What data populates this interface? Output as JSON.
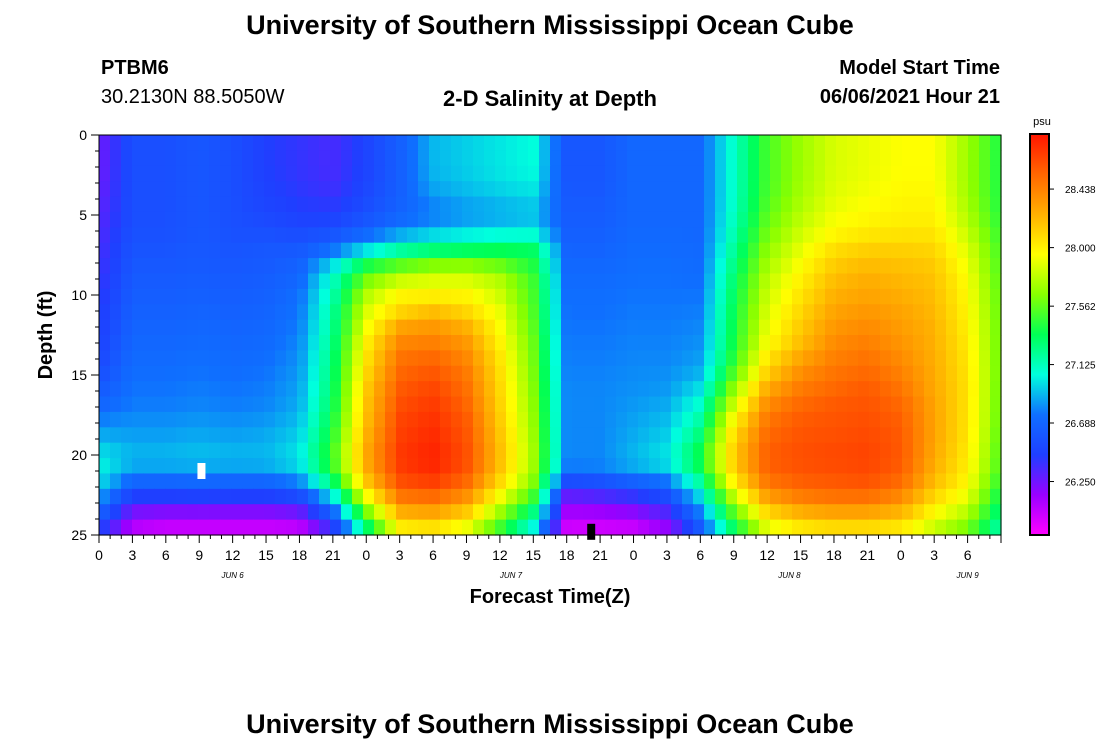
{
  "header": {
    "title": "University of Southern Mississippi Ocean Cube",
    "station": "PTBM6",
    "location": "30.2130N  88.5050W",
    "plot_title": "2-D Salinity at Depth",
    "model_start_label": "Model Start Time",
    "model_start_value": "06/06/2021 Hour 21"
  },
  "footer": {
    "title": "University of Southern Mississippi Ocean Cube"
  },
  "colors": {
    "scale": [
      "#ff00ff",
      "#9900ff",
      "#1f3fff",
      "#0f6fff",
      "#00ffdd",
      "#00ff55",
      "#88ff00",
      "#ffff00",
      "#ffb000",
      "#ff6600",
      "#ff1500"
    ]
  },
  "chart_data": {
    "type": "heatmap",
    "title": "2-D Salinity at Depth",
    "xlabel": "Forecast Time(Z)",
    "ylabel": "Depth (ft)",
    "x_range_hours": [
      0,
      81
    ],
    "ylim": [
      0,
      25
    ],
    "y_ticks": [
      "0",
      "5",
      "10",
      "15",
      "20",
      "25"
    ],
    "x_ticks": [
      "0",
      "3",
      "6",
      "9",
      "12",
      "15",
      "18",
      "21",
      "0",
      "3",
      "6",
      "9",
      "12",
      "15",
      "18",
      "21",
      "0",
      "3",
      "6",
      "9",
      "12",
      "15",
      "18",
      "21",
      "0",
      "3",
      "6"
    ],
    "date_labels": [
      {
        "label": "JUN 6",
        "hour": 12
      },
      {
        "label": "JUN 7",
        "hour": 37
      },
      {
        "label": "JUN 8",
        "hour": 62
      },
      {
        "label": "JUN 9",
        "hour": 78
      }
    ],
    "colorbar": {
      "unit": "psu",
      "labels": [
        "28.438",
        "28.000",
        "27.562",
        "27.125",
        "26.688",
        "26.250"
      ],
      "min": 25.85,
      "max": 28.85
    },
    "grid": false,
    "depth_levels_ft": [
      0,
      1,
      2,
      3,
      4,
      5,
      6,
      7,
      8,
      9,
      10,
      11,
      12,
      13,
      14,
      15,
      16,
      17,
      18,
      19,
      20,
      21,
      22,
      23,
      24,
      25
    ],
    "time_hours": [
      0,
      3,
      6,
      9,
      12,
      15,
      18,
      21,
      24,
      27,
      30,
      33,
      36,
      39,
      42,
      45,
      48,
      51,
      54,
      57,
      60,
      63,
      66,
      69,
      72,
      75,
      78,
      81
    ],
    "salinity_psu": [
      [
        26.25,
        26.55,
        26.55,
        26.6,
        26.55,
        26.45,
        26.4,
        26.35,
        26.48,
        26.65,
        26.9,
        26.95,
        27.0,
        27.05,
        26.6,
        26.6,
        26.7,
        26.7,
        26.7,
        27.1,
        27.5,
        27.7,
        27.85,
        27.9,
        27.95,
        27.95,
        27.7,
        27.4
      ],
      [
        26.25,
        26.55,
        26.55,
        26.6,
        26.55,
        26.45,
        26.4,
        26.35,
        26.48,
        26.65,
        26.9,
        26.95,
        27.0,
        27.05,
        26.6,
        26.6,
        26.7,
        26.7,
        26.7,
        27.1,
        27.5,
        27.7,
        27.85,
        27.9,
        27.95,
        27.95,
        27.7,
        27.4
      ],
      [
        26.25,
        26.55,
        26.55,
        26.6,
        26.55,
        26.45,
        26.4,
        26.35,
        26.48,
        26.65,
        26.9,
        26.95,
        27.0,
        27.05,
        26.6,
        26.6,
        26.7,
        26.7,
        26.7,
        27.1,
        27.5,
        27.7,
        27.85,
        27.9,
        27.95,
        27.95,
        27.7,
        27.4
      ],
      [
        26.26,
        26.55,
        26.55,
        26.6,
        26.55,
        26.46,
        26.41,
        26.36,
        26.49,
        26.65,
        26.88,
        26.93,
        26.98,
        27.02,
        26.6,
        26.6,
        26.7,
        26.7,
        26.7,
        27.1,
        27.5,
        27.71,
        27.86,
        27.91,
        27.96,
        27.96,
        27.7,
        27.4
      ],
      [
        26.28,
        26.55,
        26.55,
        26.6,
        26.55,
        26.48,
        26.43,
        26.4,
        26.52,
        26.66,
        26.82,
        26.88,
        26.92,
        26.96,
        26.62,
        26.62,
        26.7,
        26.7,
        26.7,
        27.1,
        27.52,
        27.73,
        27.88,
        27.94,
        27.98,
        27.98,
        27.72,
        27.4
      ],
      [
        26.3,
        26.55,
        26.55,
        26.6,
        26.55,
        26.5,
        26.46,
        26.45,
        26.56,
        26.68,
        26.76,
        26.82,
        26.86,
        26.9,
        26.63,
        26.63,
        26.7,
        26.7,
        26.7,
        27.12,
        27.55,
        27.77,
        27.92,
        27.97,
        28.0,
        28.0,
        27.75,
        27.42
      ],
      [
        26.32,
        26.56,
        26.56,
        26.6,
        26.56,
        26.55,
        26.52,
        26.55,
        26.66,
        26.8,
        26.9,
        26.95,
        26.98,
        27.0,
        26.65,
        26.65,
        26.71,
        26.71,
        26.7,
        27.15,
        27.6,
        27.82,
        27.96,
        28.02,
        28.04,
        28.04,
        27.8,
        27.45
      ],
      [
        26.34,
        26.58,
        26.58,
        26.61,
        26.58,
        26.6,
        26.6,
        26.7,
        26.9,
        27.1,
        27.2,
        27.25,
        27.3,
        27.3,
        26.67,
        26.67,
        26.72,
        26.72,
        26.71,
        27.2,
        27.66,
        27.88,
        28.06,
        28.12,
        28.12,
        28.1,
        27.86,
        27.48
      ],
      [
        26.36,
        26.6,
        26.6,
        26.62,
        26.6,
        26.62,
        26.66,
        26.95,
        27.35,
        27.5,
        27.6,
        27.62,
        27.55,
        27.4,
        26.7,
        26.7,
        26.74,
        26.74,
        26.72,
        27.25,
        27.72,
        27.94,
        28.14,
        28.2,
        28.18,
        28.15,
        27.9,
        27.5
      ],
      [
        26.38,
        26.62,
        26.62,
        26.64,
        26.62,
        26.64,
        26.7,
        27.1,
        27.6,
        27.8,
        27.85,
        27.85,
        27.75,
        27.48,
        26.72,
        26.72,
        26.75,
        26.75,
        26.74,
        27.3,
        27.78,
        28.0,
        28.2,
        28.26,
        28.22,
        28.18,
        27.94,
        27.52
      ],
      [
        26.4,
        26.64,
        26.64,
        26.66,
        26.64,
        26.66,
        26.74,
        27.15,
        27.75,
        27.98,
        28.0,
        27.98,
        27.82,
        27.5,
        26.74,
        26.74,
        26.76,
        26.76,
        26.76,
        27.33,
        27.82,
        28.05,
        28.25,
        28.3,
        28.26,
        28.2,
        27.96,
        27.54
      ],
      [
        26.42,
        26.66,
        26.66,
        26.68,
        26.66,
        26.68,
        26.76,
        27.2,
        27.85,
        28.1,
        28.2,
        28.1,
        27.9,
        27.52,
        26.75,
        26.75,
        26.77,
        26.77,
        26.78,
        27.36,
        27.86,
        28.1,
        28.3,
        28.35,
        28.3,
        28.22,
        27.98,
        27.55
      ],
      [
        26.44,
        26.68,
        26.68,
        26.7,
        26.68,
        26.7,
        26.78,
        27.22,
        27.92,
        28.3,
        28.35,
        28.25,
        27.95,
        27.55,
        26.76,
        26.76,
        26.78,
        26.78,
        26.8,
        27.38,
        27.9,
        28.15,
        28.35,
        28.4,
        28.33,
        28.24,
        28.0,
        27.56
      ],
      [
        26.46,
        26.7,
        26.7,
        26.72,
        26.7,
        26.72,
        26.8,
        27.25,
        28.0,
        28.42,
        28.45,
        28.35,
        28.0,
        27.58,
        26.77,
        26.77,
        26.79,
        26.79,
        26.82,
        27.4,
        27.95,
        28.2,
        28.4,
        28.45,
        28.36,
        28.25,
        28.02,
        27.56
      ],
      [
        26.5,
        26.72,
        26.72,
        26.74,
        26.72,
        26.74,
        26.82,
        27.28,
        28.05,
        28.5,
        28.55,
        28.42,
        28.05,
        27.6,
        26.78,
        26.78,
        26.8,
        26.8,
        26.85,
        27.45,
        28.05,
        28.3,
        28.45,
        28.5,
        28.4,
        28.26,
        28.04,
        27.56
      ],
      [
        26.55,
        26.74,
        26.74,
        26.76,
        26.74,
        26.76,
        26.84,
        27.3,
        28.1,
        28.55,
        28.62,
        28.48,
        28.08,
        27.62,
        26.79,
        26.79,
        26.81,
        26.82,
        26.9,
        27.55,
        28.15,
        28.4,
        28.5,
        28.55,
        28.45,
        28.27,
        28.05,
        27.56
      ],
      [
        26.62,
        26.76,
        26.76,
        26.78,
        26.76,
        26.78,
        26.86,
        27.32,
        28.15,
        28.6,
        28.68,
        28.52,
        28.1,
        27.64,
        26.8,
        26.8,
        26.82,
        26.84,
        27.0,
        27.7,
        28.3,
        28.48,
        28.55,
        28.6,
        28.5,
        28.28,
        28.06,
        27.55
      ],
      [
        26.7,
        26.78,
        26.78,
        26.8,
        26.78,
        26.8,
        26.88,
        27.35,
        28.18,
        28.64,
        28.72,
        28.56,
        28.12,
        27.66,
        26.8,
        26.8,
        26.84,
        26.88,
        27.1,
        27.85,
        28.42,
        28.55,
        28.6,
        28.62,
        28.55,
        28.3,
        28.05,
        27.55
      ],
      [
        26.8,
        26.82,
        26.82,
        26.84,
        26.82,
        26.84,
        26.92,
        27.4,
        28.2,
        28.68,
        28.75,
        28.6,
        28.15,
        27.68,
        26.8,
        26.8,
        26.86,
        26.92,
        27.2,
        28.0,
        28.5,
        28.6,
        28.62,
        28.64,
        28.58,
        28.3,
        28.05,
        27.54
      ],
      [
        26.9,
        26.86,
        26.86,
        26.88,
        26.86,
        26.88,
        26.96,
        27.45,
        28.25,
        28.7,
        28.78,
        28.62,
        28.18,
        27.7,
        26.8,
        26.8,
        26.88,
        26.96,
        27.3,
        28.1,
        28.55,
        28.62,
        28.64,
        28.66,
        28.6,
        28.3,
        28.04,
        27.52
      ],
      [
        27.0,
        26.9,
        26.9,
        26.92,
        26.9,
        26.9,
        27.0,
        27.5,
        28.28,
        28.72,
        28.8,
        28.64,
        28.2,
        27.72,
        26.8,
        26.8,
        26.9,
        27.0,
        27.4,
        28.15,
        28.58,
        28.64,
        28.66,
        28.68,
        28.6,
        28.28,
        28.02,
        27.5
      ],
      [
        27.05,
        26.85,
        26.85,
        26.86,
        26.85,
        26.86,
        26.95,
        27.45,
        28.26,
        28.7,
        28.78,
        28.62,
        28.18,
        27.7,
        26.76,
        26.78,
        26.86,
        26.95,
        27.35,
        28.12,
        28.56,
        28.62,
        28.64,
        28.66,
        28.58,
        28.25,
        28.0,
        27.48
      ],
      [
        26.95,
        26.6,
        26.6,
        26.62,
        26.6,
        26.6,
        26.7,
        27.2,
        28.1,
        28.6,
        28.66,
        28.5,
        28.05,
        27.6,
        26.4,
        26.45,
        26.55,
        26.65,
        27.1,
        27.95,
        28.45,
        28.55,
        28.58,
        28.6,
        28.5,
        28.18,
        27.95,
        27.4
      ],
      [
        26.8,
        26.35,
        26.35,
        26.36,
        26.35,
        26.35,
        26.4,
        26.85,
        27.8,
        28.4,
        28.45,
        28.3,
        27.85,
        27.4,
        26.2,
        26.25,
        26.3,
        26.45,
        26.9,
        27.7,
        28.25,
        28.4,
        28.45,
        28.45,
        28.35,
        28.05,
        27.85,
        27.3
      ],
      [
        26.6,
        26.15,
        26.1,
        26.1,
        26.1,
        26.1,
        26.15,
        26.55,
        27.45,
        28.15,
        28.2,
        28.05,
        27.6,
        27.15,
        26.05,
        26.05,
        26.1,
        26.25,
        26.7,
        27.45,
        28.0,
        28.15,
        28.2,
        28.2,
        28.15,
        27.9,
        27.7,
        27.2
      ],
      [
        26.4,
        26.0,
        25.95,
        25.95,
        25.95,
        25.95,
        25.95,
        26.3,
        27.15,
        27.9,
        27.95,
        27.8,
        27.4,
        26.95,
        25.95,
        25.95,
        25.95,
        26.1,
        26.55,
        27.25,
        27.8,
        27.95,
        28.0,
        28.0,
        27.95,
        27.75,
        27.55,
        27.1
      ]
    ],
    "markers": [
      {
        "hour": 9.2,
        "depth": 21,
        "color": "#ffffff"
      },
      {
        "hour": 44.2,
        "depth": 24.8,
        "color": "#000000"
      }
    ]
  }
}
